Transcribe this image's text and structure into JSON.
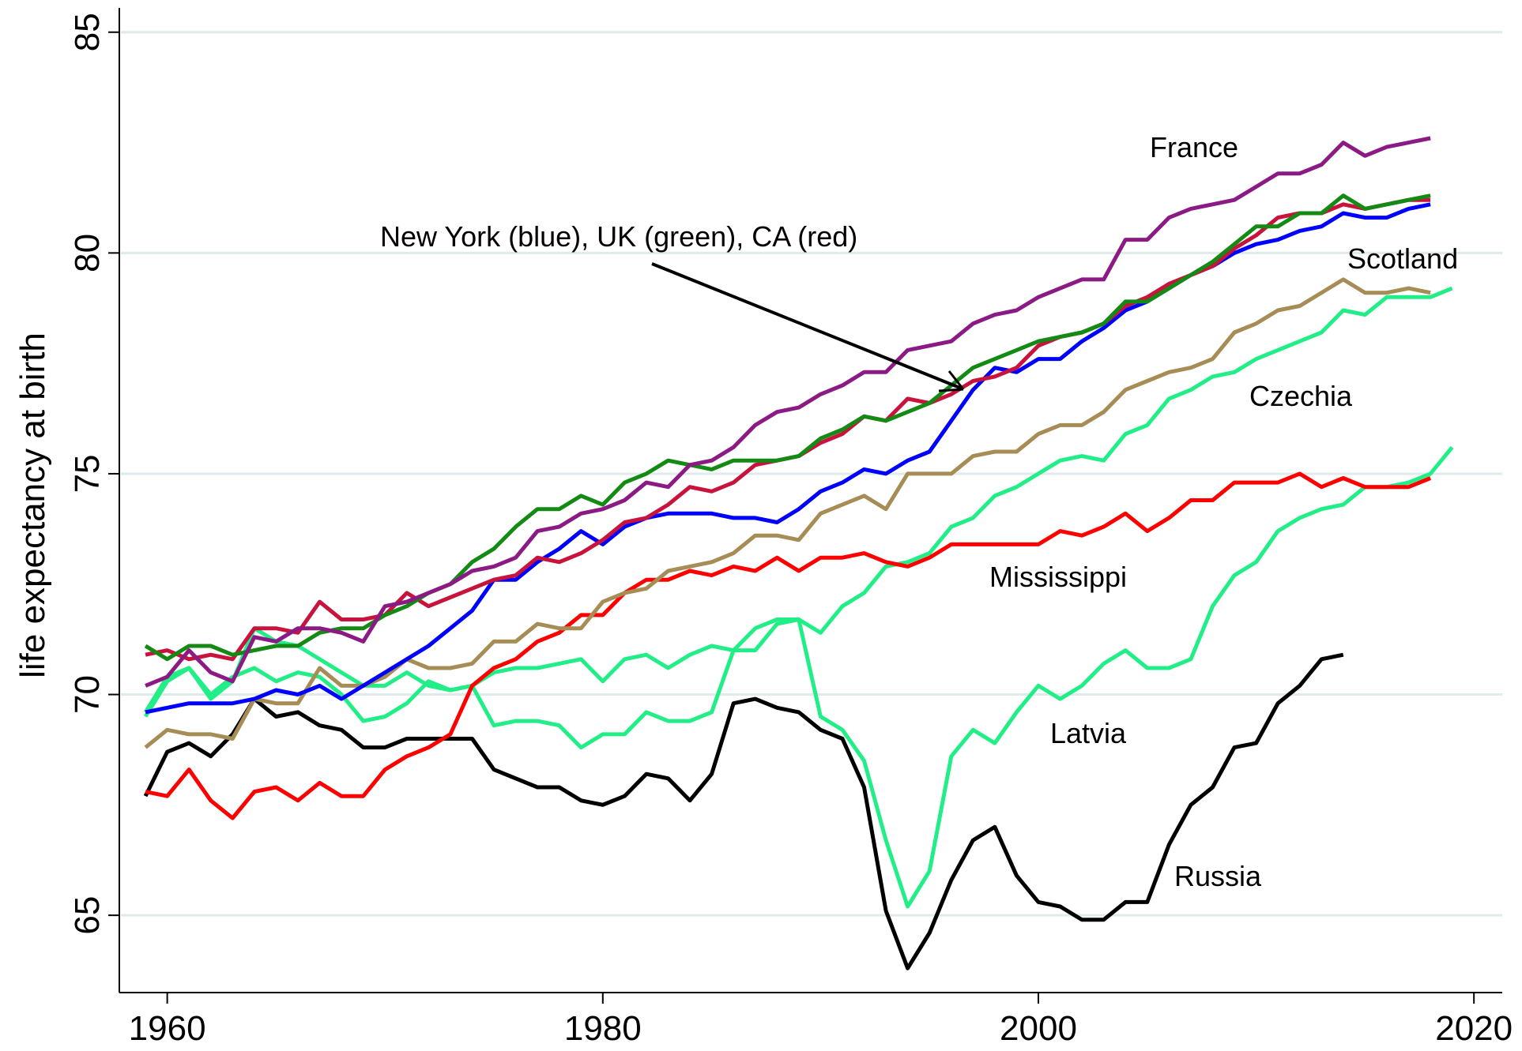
{
  "chart_data": {
    "type": "line",
    "ylabel": "life expectancy at birth",
    "annotation": "New York (blue), UK (green), CA (red)",
    "xlim": [
      1957.8,
      2021.3
    ],
    "xticks": [
      1960,
      1980,
      2000,
      2020
    ],
    "ylim": [
      63.25,
      85.55
    ],
    "yticks": [
      65,
      70,
      75,
      80,
      85
    ],
    "grid": true,
    "x": [
      1959,
      1960,
      1961,
      1962,
      1963,
      1964,
      1965,
      1966,
      1967,
      1968,
      1969,
      1970,
      1971,
      1972,
      1973,
      1974,
      1975,
      1976,
      1977,
      1978,
      1979,
      1980,
      1981,
      1982,
      1983,
      1984,
      1985,
      1986,
      1987,
      1988,
      1989,
      1990,
      1991,
      1992,
      1993,
      1994,
      1995,
      1996,
      1997,
      1998,
      1999,
      2000,
      2001,
      2002,
      2003,
      2004,
      2005,
      2006,
      2007,
      2008,
      2009,
      2010,
      2011,
      2012,
      2013,
      2014,
      2015,
      2016,
      2017,
      2018,
      2019
    ],
    "series": [
      {
        "name": "Russia",
        "color": "#000000",
        "values": [
          67.7,
          68.7,
          68.9,
          68.6,
          69.1,
          69.9,
          69.5,
          69.6,
          69.3,
          69.2,
          68.8,
          68.8,
          69.0,
          69.0,
          69.0,
          69.0,
          68.3,
          68.1,
          67.9,
          67.9,
          67.6,
          67.5,
          67.7,
          68.2,
          68.1,
          67.6,
          68.2,
          69.8,
          69.9,
          69.7,
          69.6,
          69.2,
          69.0,
          67.9,
          65.1,
          63.8,
          64.6,
          65.8,
          66.7,
          67.0,
          65.9,
          65.3,
          65.2,
          64.9,
          64.9,
          65.3,
          65.3,
          66.6,
          67.5,
          67.9,
          68.8,
          68.9,
          69.8,
          70.2,
          70.8,
          70.9,
          null,
          null,
          null,
          null,
          null
        ]
      },
      {
        "name": "Latvia",
        "color": "#22ee88",
        "values": [
          69.5,
          70.3,
          70.6,
          70.0,
          70.4,
          70.6,
          70.3,
          70.5,
          70.4,
          70.0,
          69.4,
          69.5,
          69.8,
          70.3,
          70.1,
          70.2,
          69.3,
          69.4,
          69.4,
          69.3,
          68.8,
          69.1,
          69.1,
          69.6,
          69.4,
          69.4,
          69.6,
          71.0,
          71.5,
          71.7,
          71.7,
          69.5,
          69.2,
          68.5,
          66.7,
          65.2,
          66.0,
          68.6,
          69.2,
          68.9,
          69.6,
          70.2,
          69.9,
          70.2,
          70.7,
          71.0,
          70.6,
          70.6,
          70.8,
          72.0,
          72.7,
          73.0,
          73.7,
          74.0,
          74.2,
          74.3,
          74.7,
          74.7,
          74.8,
          75.0,
          75.6
        ]
      },
      {
        "name": "Czechia",
        "color": "#22ee88",
        "values": [
          69.6,
          70.4,
          70.6,
          69.9,
          70.3,
          71.5,
          71.2,
          71.1,
          70.8,
          70.5,
          70.2,
          70.2,
          70.5,
          70.2,
          70.1,
          70.2,
          70.5,
          70.6,
          70.6,
          70.7,
          70.8,
          70.3,
          70.8,
          70.9,
          70.6,
          70.9,
          71.1,
          71.0,
          71.0,
          71.6,
          71.7,
          71.4,
          72.0,
          72.3,
          72.9,
          73.0,
          73.2,
          73.8,
          74.0,
          74.5,
          74.7,
          75.0,
          75.3,
          75.4,
          75.3,
          75.9,
          76.1,
          76.7,
          76.9,
          77.2,
          77.3,
          77.6,
          77.8,
          78.0,
          78.2,
          78.7,
          78.6,
          79.0,
          79.0,
          79.0,
          79.2
        ]
      },
      {
        "name": "Mississippi",
        "color": "#ff0000",
        "values": [
          67.8,
          67.7,
          68.3,
          67.6,
          67.2,
          67.8,
          67.9,
          67.6,
          68.0,
          67.7,
          67.7,
          68.3,
          68.6,
          68.8,
          69.1,
          70.2,
          70.6,
          70.8,
          71.2,
          71.4,
          71.8,
          71.8,
          72.3,
          72.6,
          72.6,
          72.8,
          72.7,
          72.9,
          72.8,
          73.1,
          72.8,
          73.1,
          73.1,
          73.2,
          73.0,
          72.9,
          73.1,
          73.4,
          73.4,
          73.4,
          73.4,
          73.4,
          73.7,
          73.6,
          73.8,
          74.1,
          73.7,
          74.0,
          74.4,
          74.4,
          74.8,
          74.8,
          74.8,
          75.0,
          74.7,
          74.9,
          74.7,
          74.7,
          74.7,
          74.9,
          null
        ]
      },
      {
        "name": "Scotland",
        "color": "#a68c55",
        "values": [
          68.8,
          69.2,
          69.1,
          69.1,
          69.0,
          69.9,
          69.8,
          69.8,
          70.6,
          70.2,
          70.2,
          70.4,
          70.8,
          70.6,
          70.6,
          70.7,
          71.2,
          71.2,
          71.6,
          71.5,
          71.5,
          72.1,
          72.3,
          72.4,
          72.8,
          72.9,
          73.0,
          73.2,
          73.6,
          73.6,
          73.5,
          74.1,
          74.3,
          74.5,
          74.2,
          75.0,
          75.0,
          75.0,
          75.4,
          75.5,
          75.5,
          75.9,
          76.1,
          76.1,
          76.4,
          76.9,
          77.1,
          77.3,
          77.4,
          77.6,
          78.2,
          78.4,
          78.7,
          78.8,
          79.1,
          79.4,
          79.1,
          79.1,
          79.2,
          79.1,
          null
        ]
      },
      {
        "color": "#0000ff",
        "values": [
          69.6,
          69.7,
          69.8,
          69.8,
          69.8,
          69.9,
          70.1,
          70.0,
          70.2,
          69.9,
          70.2,
          70.5,
          70.8,
          71.1,
          71.5,
          71.9,
          72.6,
          72.6,
          73.0,
          73.3,
          73.7,
          73.4,
          73.8,
          74.0,
          74.1,
          74.1,
          74.1,
          74.0,
          74.0,
          73.9,
          74.2,
          74.6,
          74.8,
          75.1,
          75.0,
          75.3,
          75.5,
          76.2,
          76.9,
          77.4,
          77.3,
          77.6,
          77.6,
          78.0,
          78.3,
          78.7,
          78.9,
          79.2,
          79.5,
          79.7,
          80.0,
          80.2,
          80.3,
          80.5,
          80.6,
          80.9,
          80.8,
          80.8,
          81.0,
          81.1,
          null
        ]
      },
      {
        "color": "#c8143c",
        "values": [
          70.9,
          71.0,
          70.8,
          70.9,
          70.8,
          71.5,
          71.5,
          71.4,
          72.1,
          71.7,
          71.7,
          71.8,
          72.3,
          72.0,
          72.2,
          72.4,
          72.6,
          72.7,
          73.1,
          73.0,
          73.2,
          73.5,
          73.9,
          74.0,
          74.3,
          74.7,
          74.6,
          74.8,
          75.2,
          75.3,
          75.4,
          75.7,
          75.9,
          76.3,
          76.2,
          76.7,
          76.6,
          76.8,
          77.1,
          77.2,
          77.4,
          77.9,
          78.1,
          78.2,
          78.4,
          78.8,
          79.0,
          79.3,
          79.5,
          79.7,
          80.1,
          80.4,
          80.8,
          80.9,
          80.9,
          81.1,
          81.0,
          81.1,
          81.2,
          81.2,
          null
        ]
      },
      {
        "color": "#138a13",
        "values": [
          71.1,
          70.8,
          71.1,
          71.1,
          70.9,
          71.0,
          71.1,
          71.1,
          71.4,
          71.5,
          71.5,
          71.8,
          72.0,
          72.3,
          72.5,
          73.0,
          73.3,
          73.8,
          74.2,
          74.2,
          74.5,
          74.3,
          74.8,
          75.0,
          75.3,
          75.2,
          75.1,
          75.3,
          75.3,
          75.3,
          75.4,
          75.8,
          76.0,
          76.3,
          76.2,
          76.4,
          76.6,
          77.0,
          77.4,
          77.6,
          77.8,
          78.0,
          78.1,
          78.2,
          78.4,
          78.9,
          78.9,
          79.2,
          79.5,
          79.8,
          80.2,
          80.6,
          80.6,
          80.9,
          80.9,
          81.3,
          81.0,
          81.1,
          81.2,
          81.3,
          null
        ]
      },
      {
        "name": "France",
        "color": "#8b1a85",
        "values": [
          70.2,
          70.4,
          71.0,
          70.5,
          70.3,
          71.3,
          71.2,
          71.5,
          71.5,
          71.4,
          71.2,
          72.0,
          72.1,
          72.3,
          72.5,
          72.8,
          72.9,
          73.1,
          73.7,
          73.8,
          74.1,
          74.2,
          74.4,
          74.8,
          74.7,
          75.2,
          75.3,
          75.6,
          76.1,
          76.4,
          76.5,
          76.8,
          77.0,
          77.3,
          77.3,
          77.8,
          77.9,
          78.0,
          78.4,
          78.6,
          78.7,
          79.0,
          79.2,
          79.4,
          79.4,
          80.3,
          80.3,
          80.8,
          81.0,
          81.1,
          81.2,
          81.5,
          81.8,
          81.8,
          82.0,
          82.5,
          82.2,
          82.4,
          82.5,
          82.6,
          null
        ]
      }
    ]
  }
}
